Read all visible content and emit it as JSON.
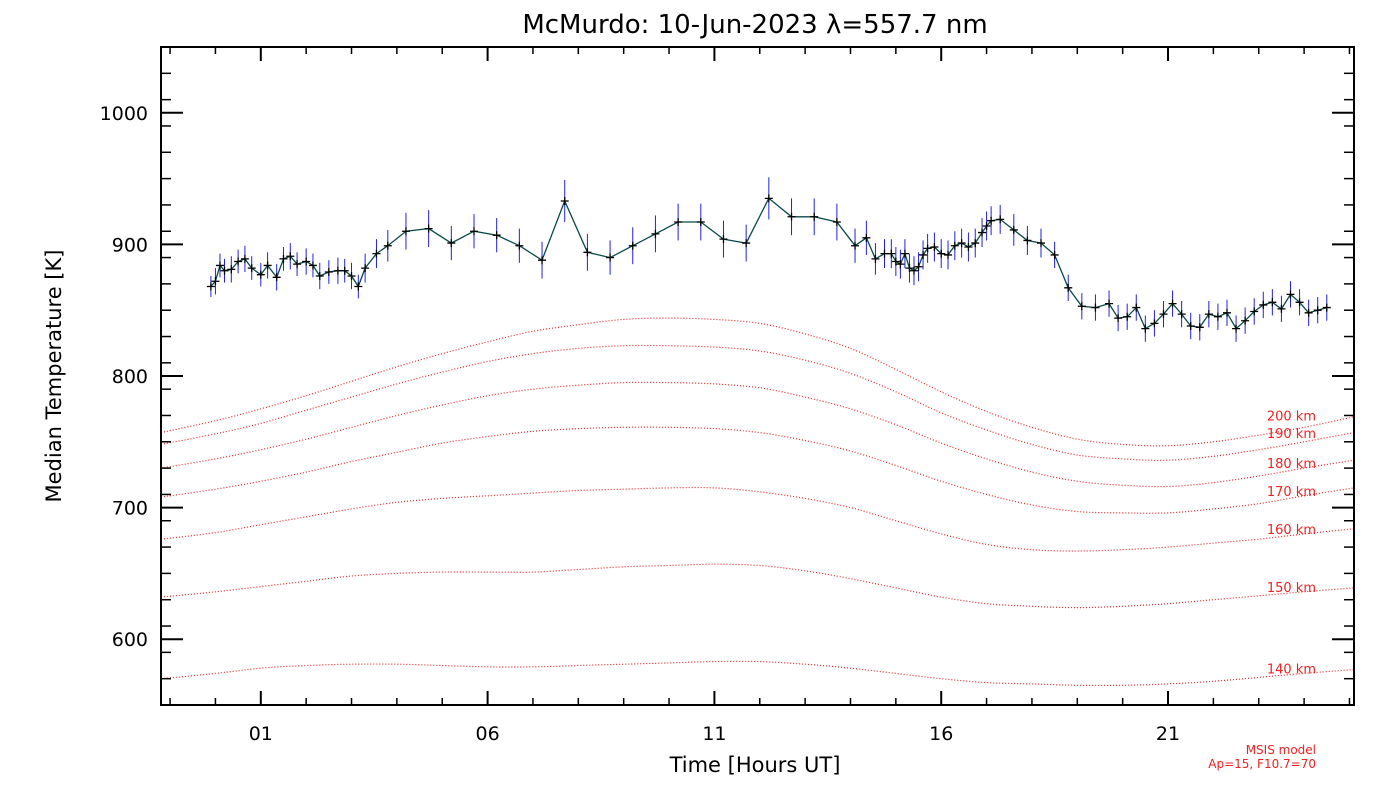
{
  "chart_data": {
    "type": "line",
    "title": "McMurdo: 10-Jun-2023 λ=557.7 nm",
    "xlabel": "Time [Hours UT]",
    "ylabel": "Median Temperature [K]",
    "xlim": [
      -1.2,
      25.1
    ],
    "ylim": [
      550,
      1050
    ],
    "x_tick_values": [
      1,
      6,
      11,
      16,
      21
    ],
    "x_tick_labels": [
      "01",
      "06",
      "11",
      "16",
      "21"
    ],
    "y_tick_values": [
      600,
      700,
      800,
      900,
      1000
    ],
    "y_tick_labels": [
      "600",
      "700",
      "800",
      "900",
      "1000"
    ],
    "grid": false,
    "colors": {
      "measurement_line": "#0b4a4a",
      "measurement_marker": "#000000",
      "error_bar": "#2222dd",
      "model": "#ee2222"
    },
    "measured_series": {
      "x": [
        -0.1,
        0.0,
        0.1,
        0.2,
        0.35,
        0.5,
        0.65,
        0.8,
        1.0,
        1.15,
        1.35,
        1.5,
        1.65,
        1.8,
        2.0,
        2.15,
        2.3,
        2.5,
        2.7,
        2.85,
        3.0,
        3.15,
        3.3,
        3.55,
        3.8,
        4.2,
        4.7,
        5.2,
        5.7,
        6.2,
        6.7,
        7.2,
        7.7,
        8.2,
        8.7,
        9.2,
        9.7,
        10.2,
        10.7,
        11.2,
        11.7,
        12.2,
        12.7,
        13.2,
        13.7,
        14.1,
        14.35,
        14.55,
        14.75,
        14.9,
        15.0,
        15.1,
        15.2,
        15.3,
        15.4,
        15.5,
        15.6,
        15.7,
        15.85,
        16.0,
        16.15,
        16.3,
        16.45,
        16.6,
        16.75,
        16.9,
        17.0,
        17.1,
        17.3,
        17.6,
        17.9,
        18.2,
        18.5,
        18.8,
        19.1,
        19.4,
        19.7,
        19.9,
        20.1,
        20.3,
        20.5,
        20.7,
        20.9,
        21.1,
        21.3,
        21.5,
        21.7,
        21.9,
        22.1,
        22.3,
        22.5,
        22.7,
        22.9,
        23.1,
        23.3,
        23.5,
        23.7,
        23.9,
        24.1,
        24.3,
        24.5
      ],
      "y": [
        868,
        872,
        884,
        880,
        881,
        887,
        889,
        882,
        877,
        884,
        875,
        889,
        891,
        885,
        887,
        884,
        876,
        879,
        880,
        880,
        876,
        868,
        882,
        893,
        899,
        910,
        912,
        901,
        910,
        907,
        899,
        888,
        933,
        894,
        890,
        899,
        908,
        917,
        917,
        904,
        901,
        935,
        921,
        921,
        917,
        899,
        905,
        889,
        893,
        893,
        887,
        885,
        893,
        882,
        880,
        883,
        892,
        897,
        898,
        893,
        892,
        899,
        901,
        898,
        901,
        909,
        914,
        918,
        919,
        911,
        903,
        901,
        892,
        867,
        853,
        852,
        855,
        844,
        845,
        852,
        836,
        840,
        847,
        855,
        847,
        838,
        837,
        847,
        845,
        848,
        836,
        842,
        849,
        854,
        856,
        851,
        862,
        856,
        848,
        850,
        852
      ],
      "error": [
        8,
        10,
        9,
        9,
        10,
        9,
        10,
        9,
        9,
        10,
        10,
        9,
        10,
        9,
        10,
        9,
        10,
        9,
        10,
        9,
        10,
        9,
        11,
        11,
        12,
        14,
        14,
        13,
        13,
        13,
        13,
        14,
        16,
        14,
        13,
        14,
        14,
        14,
        14,
        14,
        14,
        16,
        14,
        14,
        14,
        13,
        13,
        12,
        11,
        11,
        11,
        11,
        11,
        11,
        11,
        11,
        11,
        11,
        11,
        11,
        11,
        11,
        11,
        11,
        11,
        11,
        11,
        11,
        11,
        12,
        11,
        11,
        10,
        10,
        10,
        10,
        10,
        10,
        10,
        10,
        10,
        10,
        10,
        10,
        10,
        10,
        10,
        10,
        10,
        10,
        10,
        10,
        10,
        10,
        10,
        10,
        10,
        10,
        10,
        10,
        10
      ]
    },
    "model_x": [
      -1.2,
      0,
      1,
      2,
      3,
      4,
      5,
      6,
      7,
      8,
      9,
      10,
      11,
      12,
      13,
      14,
      15,
      16,
      17,
      18,
      19,
      20,
      21,
      22,
      23,
      24,
      25.1
    ],
    "model_series": [
      {
        "name": "200 km",
        "values": [
          757,
          766,
          775,
          785,
          796,
          807,
          817,
          826,
          834,
          839,
          843,
          844,
          843,
          840,
          832,
          821,
          805,
          788,
          773,
          761,
          752,
          748,
          747,
          750,
          755,
          761,
          769
        ]
      },
      {
        "name": "190 km",
        "values": [
          748,
          756,
          764,
          774,
          784,
          794,
          803,
          811,
          817,
          821,
          823,
          823,
          822,
          819,
          812,
          802,
          788,
          772,
          759,
          748,
          740,
          737,
          736,
          739,
          744,
          750,
          757
        ]
      },
      {
        "name": "180 km",
        "values": [
          730,
          737,
          744,
          752,
          761,
          770,
          778,
          785,
          790,
          793,
          795,
          795,
          794,
          791,
          784,
          775,
          763,
          749,
          737,
          727,
          720,
          717,
          716,
          719,
          724,
          730,
          736
        ]
      },
      {
        "name": "170 km",
        "values": [
          708,
          714,
          720,
          727,
          735,
          742,
          749,
          754,
          758,
          760,
          761,
          761,
          760,
          757,
          751,
          743,
          732,
          720,
          710,
          702,
          697,
          696,
          696,
          699,
          703,
          709,
          715
        ]
      },
      {
        "name": "160 km",
        "values": [
          676,
          681,
          687,
          693,
          699,
          704,
          707,
          709,
          711,
          713,
          714,
          715,
          715,
          712,
          707,
          700,
          690,
          680,
          672,
          668,
          667,
          668,
          670,
          673,
          676,
          680,
          684
        ]
      },
      {
        "name": "150 km",
        "values": [
          632,
          636,
          640,
          644,
          648,
          650,
          651,
          651,
          651,
          653,
          655,
          656,
          657,
          656,
          652,
          646,
          639,
          632,
          627,
          625,
          624,
          625,
          627,
          630,
          633,
          636,
          639
        ]
      },
      {
        "name": "140 km",
        "values": [
          570,
          574,
          578,
          580,
          581,
          581,
          580,
          579,
          579,
          580,
          581,
          582,
          583,
          583,
          581,
          578,
          574,
          570,
          567,
          566,
          565,
          565,
          566,
          568,
          571,
          574,
          577
        ]
      }
    ],
    "model_note": [
      "MSIS model",
      "Ap=15, F10.7=70"
    ]
  }
}
